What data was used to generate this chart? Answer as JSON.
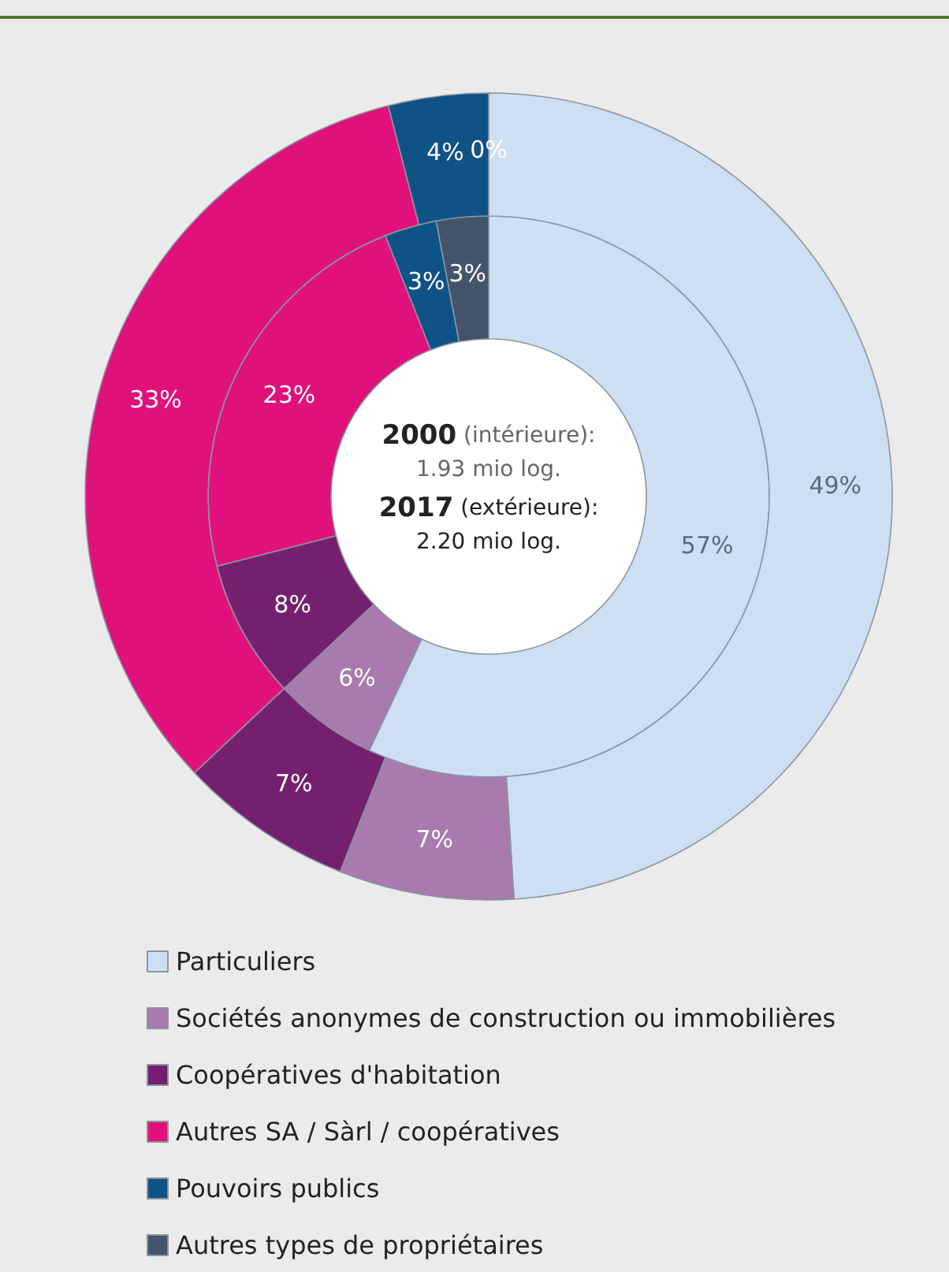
{
  "chart_data": {
    "type": "donut",
    "categories": [
      "Particuliers",
      "Sociétés anonymes de construction ou immobilières",
      "Coopératives d'habitation",
      "Autres SA / Sàrl / coopératives",
      "Pouvoirs publics",
      "Autres types de propriétaires"
    ],
    "colors": [
      "#cddff0",
      "#a87aae",
      "#74206f",
      "#e0117a",
      "#0f5286",
      "#44546a"
    ],
    "series": [
      {
        "values": [
          57,
          6,
          8,
          23,
          3,
          3
        ],
        "value_labels": [
          "57%",
          "6%",
          "8%",
          "23%",
          "3%",
          "3%"
        ]
      },
      {
        "values": [
          49,
          7,
          7,
          33,
          4,
          0
        ],
        "value_labels": [
          "49%",
          "7%",
          "7%",
          "33%",
          "4%",
          "0%"
        ]
      }
    ],
    "annotations": [
      "2000 (intérieure):",
      "1.93 mio log.",
      "2017 (extérieure):",
      "2.20 mio log."
    ],
    "legend": "bottom"
  }
}
